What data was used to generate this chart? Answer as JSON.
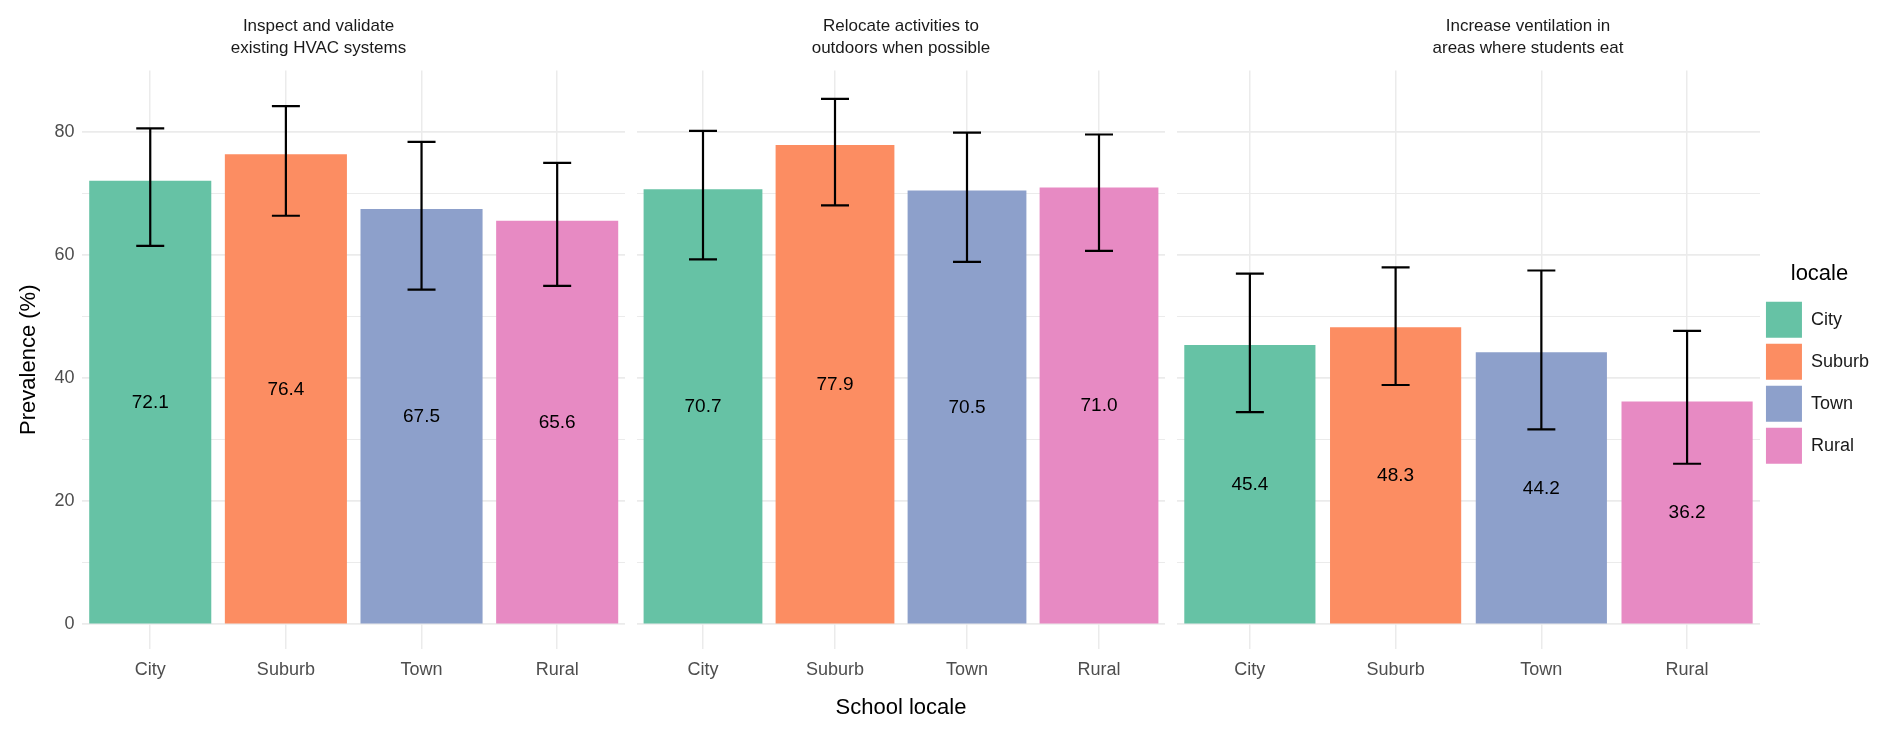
{
  "chart_data": [
    {
      "type": "bar",
      "title": "Inspect and validate existing HVAC systems",
      "ylabel": "Prevalence (%)",
      "categories": [
        "City",
        "Suburb",
        "Town",
        "Rural"
      ],
      "series": [
        {
          "color": "#66c2a5",
          "values": [
            72.1,
            null,
            null,
            null
          ],
          "value_labels": [
            "72.1",
            null,
            null,
            null
          ],
          "errors": [
            [
              61.5,
              80.6
            ],
            null,
            null,
            null
          ]
        },
        {
          "color": "#fc8d62",
          "values": [
            null,
            76.4,
            null,
            null
          ],
          "value_labels": [
            null,
            "76.4",
            null,
            null
          ],
          "errors": [
            null,
            [
              66.4,
              84.2
            ],
            null,
            null
          ]
        },
        {
          "color": "#8da0cb",
          "values": [
            null,
            null,
            67.5,
            null
          ],
          "value_labels": [
            null,
            null,
            "67.5",
            null
          ],
          "errors": [
            null,
            null,
            [
              54.4,
              78.4
            ],
            null
          ]
        },
        {
          "color": "#e78ac3",
          "values": [
            null,
            null,
            null,
            65.6
          ],
          "value_labels": [
            null,
            null,
            null,
            "65.6"
          ],
          "errors": [
            null,
            null,
            null,
            [
              55.0,
              75.0
            ]
          ]
        }
      ],
      "ylim": [
        -4,
        90
      ],
      "yticks": [
        0,
        {
          "value": 10,
          "label": null
        },
        20,
        {
          "value": 30,
          "label": null
        },
        40,
        {
          "value": 50,
          "label": null
        },
        60,
        {
          "value": 70,
          "label": null
        },
        80
      ],
      "grid": true
    },
    {
      "type": "bar",
      "title": "Relocate activities to outdoors when possible",
      "xlabel": "School locale",
      "categories": [
        "City",
        "Suburb",
        "Town",
        "Rural"
      ],
      "series": [
        {
          "color": "#66c2a5",
          "values": [
            70.7,
            null,
            null,
            null
          ],
          "value_labels": [
            "70.7",
            null,
            null,
            null
          ],
          "errors": [
            [
              59.3,
              80.2
            ],
            null,
            null,
            null
          ]
        },
        {
          "color": "#fc8d62",
          "values": [
            null,
            77.9,
            null,
            null
          ],
          "value_labels": [
            null,
            "77.9",
            null,
            null
          ],
          "errors": [
            null,
            [
              68.1,
              85.4
            ],
            null,
            null
          ]
        },
        {
          "color": "#8da0cb",
          "values": [
            null,
            null,
            70.5,
            null
          ],
          "value_labels": [
            null,
            null,
            "70.5",
            null
          ],
          "errors": [
            null,
            null,
            [
              58.9,
              79.9
            ],
            null
          ]
        },
        {
          "color": "#e78ac3",
          "values": [
            null,
            null,
            null,
            71.0
          ],
          "value_labels": [
            null,
            null,
            null,
            "71.0"
          ],
          "errors": [
            null,
            null,
            null,
            [
              60.7,
              79.6
            ]
          ]
        }
      ],
      "ylim": [
        -4,
        90
      ],
      "yticks": [
        0,
        {
          "value": 10,
          "label": null
        },
        20,
        {
          "value": 30,
          "label": null
        },
        40,
        {
          "value": 50,
          "label": null
        },
        60,
        {
          "value": 70,
          "label": null
        },
        80
      ],
      "grid": true,
      "tick_labels": "x"
    },
    {
      "type": "bar",
      "title": "Increase ventilation in areas where students eat",
      "categories": [
        "City",
        "Suburb",
        "Town",
        "Rural"
      ],
      "series": [
        {
          "name": "City",
          "color": "#66c2a5",
          "values": [
            45.4,
            null,
            null,
            null
          ],
          "value_labels": [
            "45.4",
            null,
            null,
            null
          ],
          "errors": [
            [
              34.5,
              57.0
            ],
            null,
            null,
            null
          ]
        },
        {
          "name": "Suburb",
          "color": "#fc8d62",
          "values": [
            null,
            48.3,
            null,
            null
          ],
          "value_labels": [
            null,
            "48.3",
            null,
            null
          ],
          "errors": [
            null,
            [
              38.9,
              58.0
            ],
            null,
            null
          ]
        },
        {
          "name": "Town",
          "color": "#8da0cb",
          "values": [
            null,
            null,
            44.2,
            null
          ],
          "value_labels": [
            null,
            null,
            "44.2",
            null
          ],
          "errors": [
            null,
            null,
            [
              31.7,
              57.5
            ],
            null
          ]
        },
        {
          "name": "Rural",
          "color": "#e78ac3",
          "values": [
            null,
            null,
            null,
            36.2
          ],
          "value_labels": [
            null,
            null,
            null,
            "36.2"
          ],
          "errors": [
            null,
            null,
            null,
            [
              26.1,
              47.7
            ]
          ]
        }
      ],
      "ylim": [
        -4,
        90
      ],
      "yticks": [
        0,
        {
          "value": 10,
          "label": null
        },
        20,
        {
          "value": 30,
          "label": null
        },
        40,
        {
          "value": 50,
          "label": null
        },
        60,
        {
          "value": 70,
          "label": null
        },
        80
      ],
      "grid": true,
      "tick_labels": "x",
      "legend": "right",
      "legend_title": "locale"
    }
  ]
}
